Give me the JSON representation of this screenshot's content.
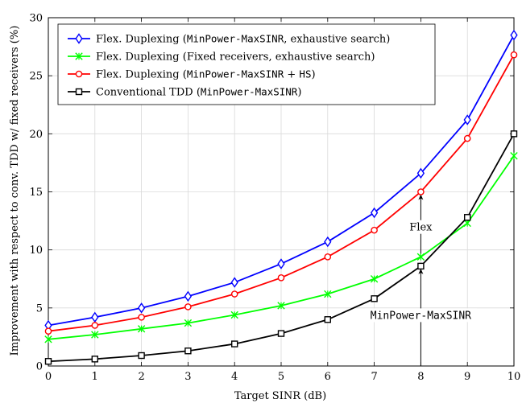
{
  "chart_data": {
    "type": "line",
    "xlabel": "Target SINR (dB)",
    "ylabel": "Improvement with respect to conv. TDD w/ fixed receivers (%)",
    "xlim": [
      0,
      10
    ],
    "ylim": [
      0,
      30
    ],
    "xticks": [
      "0",
      "1",
      "2",
      "3",
      "4",
      "5",
      "6",
      "7",
      "8",
      "9",
      "10"
    ],
    "yticks": [
      "0",
      "5",
      "10",
      "15",
      "20",
      "25",
      "30"
    ],
    "grid": true,
    "legend_position": "top-left",
    "x": [
      0,
      1,
      2,
      3,
      4,
      5,
      6,
      7,
      8,
      9,
      10
    ],
    "series": [
      {
        "name_prefix": "Flex. Duplexing (",
        "name_mono": "MinPower-MaxSINR",
        "name_suffix": ", exhaustive search)",
        "color": "#0000ff",
        "marker": "diamond",
        "values": [
          3.5,
          4.2,
          5.0,
          6.0,
          7.2,
          8.8,
          10.7,
          13.2,
          16.6,
          21.2,
          28.5
        ]
      },
      {
        "name_prefix": "Flex. Duplexing (Fixed receivers, exhaustive search)",
        "name_mono": "",
        "name_suffix": "",
        "color": "#00ff00",
        "marker": "x",
        "values": [
          2.3,
          2.7,
          3.2,
          3.7,
          4.4,
          5.2,
          6.2,
          7.5,
          9.4,
          12.3,
          18.1
        ]
      },
      {
        "name_prefix": "Flex. Duplexing (",
        "name_mono": "MinPower-MaxSINR",
        "name_suffix": " + HS)",
        "name_mono2": "HS",
        "color": "#ff0000",
        "marker": "circle",
        "values": [
          3.0,
          3.5,
          4.2,
          5.1,
          6.2,
          7.6,
          9.4,
          11.7,
          15.0,
          19.6,
          26.8
        ]
      },
      {
        "name_prefix": "Conventional TDD (",
        "name_mono": "MinPower-MaxSINR",
        "name_suffix": ")",
        "color": "#000000",
        "marker": "square",
        "values": [
          0.4,
          0.6,
          0.9,
          1.3,
          1.9,
          2.8,
          4.0,
          5.8,
          8.6,
          12.8,
          20.0
        ]
      }
    ],
    "annotations": [
      {
        "text": "Flex",
        "mono": false,
        "x": 8,
        "y": 11.8
      },
      {
        "text": "MinPower-MaxSINR",
        "mono": true,
        "x": 8,
        "y": 4.2
      }
    ],
    "arrow": {
      "x": 8,
      "from_y": 0,
      "to_y_lower": 8.6,
      "from_y_upper": 9.4,
      "to_y_upper": 15.0
    }
  }
}
